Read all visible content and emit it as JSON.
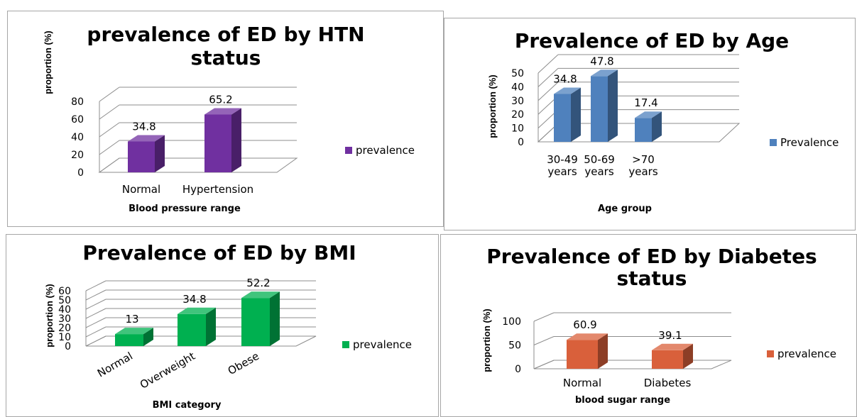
{
  "chart_data": [
    {
      "type": "bar",
      "title": "prevalence of ED by HTN status",
      "title_lines": [
        "prevalence of ED by HTN",
        "status"
      ],
      "xlabel": "Blood pressure range",
      "ylabel": "proportion (%)",
      "ylim": [
        0,
        80
      ],
      "yticks": [
        0,
        20,
        40,
        60,
        80
      ],
      "categories": [
        "Normal",
        "Hypertension"
      ],
      "category_lines": [
        [
          "Normal"
        ],
        [
          "Hypertension"
        ]
      ],
      "series": [
        {
          "name": "prevalence",
          "values": [
            34.8,
            65.2
          ]
        }
      ],
      "data_labels": [
        "34.8",
        "65.2"
      ],
      "color": "#7030A0",
      "grid": true,
      "legend": "right"
    },
    {
      "type": "bar",
      "title": "Prevalence of ED by Age",
      "title_lines": [
        "Prevalence of ED by Age"
      ],
      "xlabel": "Age group",
      "ylabel": "proportion (%)",
      "ylim": [
        0,
        50
      ],
      "yticks": [
        0,
        10,
        20,
        30,
        40,
        50
      ],
      "categories": [
        "30-49 years",
        "50-69 years",
        ">70 years"
      ],
      "category_lines": [
        [
          "30-49",
          "years"
        ],
        [
          "50-69",
          "years"
        ],
        [
          ">70",
          "years"
        ]
      ],
      "series": [
        {
          "name": "Prevalence",
          "values": [
            34.8,
            47.8,
            17.4
          ]
        }
      ],
      "data_labels": [
        "34.8",
        "47.8",
        "17.4"
      ],
      "color": "#4F81BD",
      "grid": true,
      "legend": "right"
    },
    {
      "type": "bar",
      "title": "Prevalence of ED by BMI",
      "title_lines": [
        "Prevalence of ED by BMI"
      ],
      "xlabel": "BMI category",
      "ylabel": "proportion (%)",
      "ylim": [
        0,
        60
      ],
      "yticks": [
        0,
        10,
        20,
        30,
        40,
        50,
        60
      ],
      "categories": [
        "Normal",
        "Overweight",
        "Obese"
      ],
      "category_lines": [
        [
          "Normal"
        ],
        [
          "Overweight"
        ],
        [
          "Obese"
        ]
      ],
      "series": [
        {
          "name": "prevalence",
          "values": [
            13,
            34.8,
            52.2
          ]
        }
      ],
      "data_labels": [
        "13",
        "34.8",
        "52.2"
      ],
      "color": "#00B050",
      "grid": true,
      "legend": "right"
    },
    {
      "type": "bar",
      "title": "Prevalence of ED by Diabetes status",
      "title_lines": [
        "Prevalence of ED by Diabetes",
        "status"
      ],
      "xlabel": "blood sugar range",
      "ylabel": "proportion (%)",
      "ylim": [
        0,
        100
      ],
      "yticks": [
        0,
        50,
        100
      ],
      "categories": [
        "Normal",
        "Diabetes"
      ],
      "category_lines": [
        [
          "Normal"
        ],
        [
          "Diabetes"
        ]
      ],
      "series": [
        {
          "name": "prevalence",
          "values": [
            60.9,
            39.1
          ]
        }
      ],
      "data_labels": [
        "60.9",
        "39.1"
      ],
      "color": "#D9603B",
      "grid": true,
      "legend": "right"
    }
  ]
}
